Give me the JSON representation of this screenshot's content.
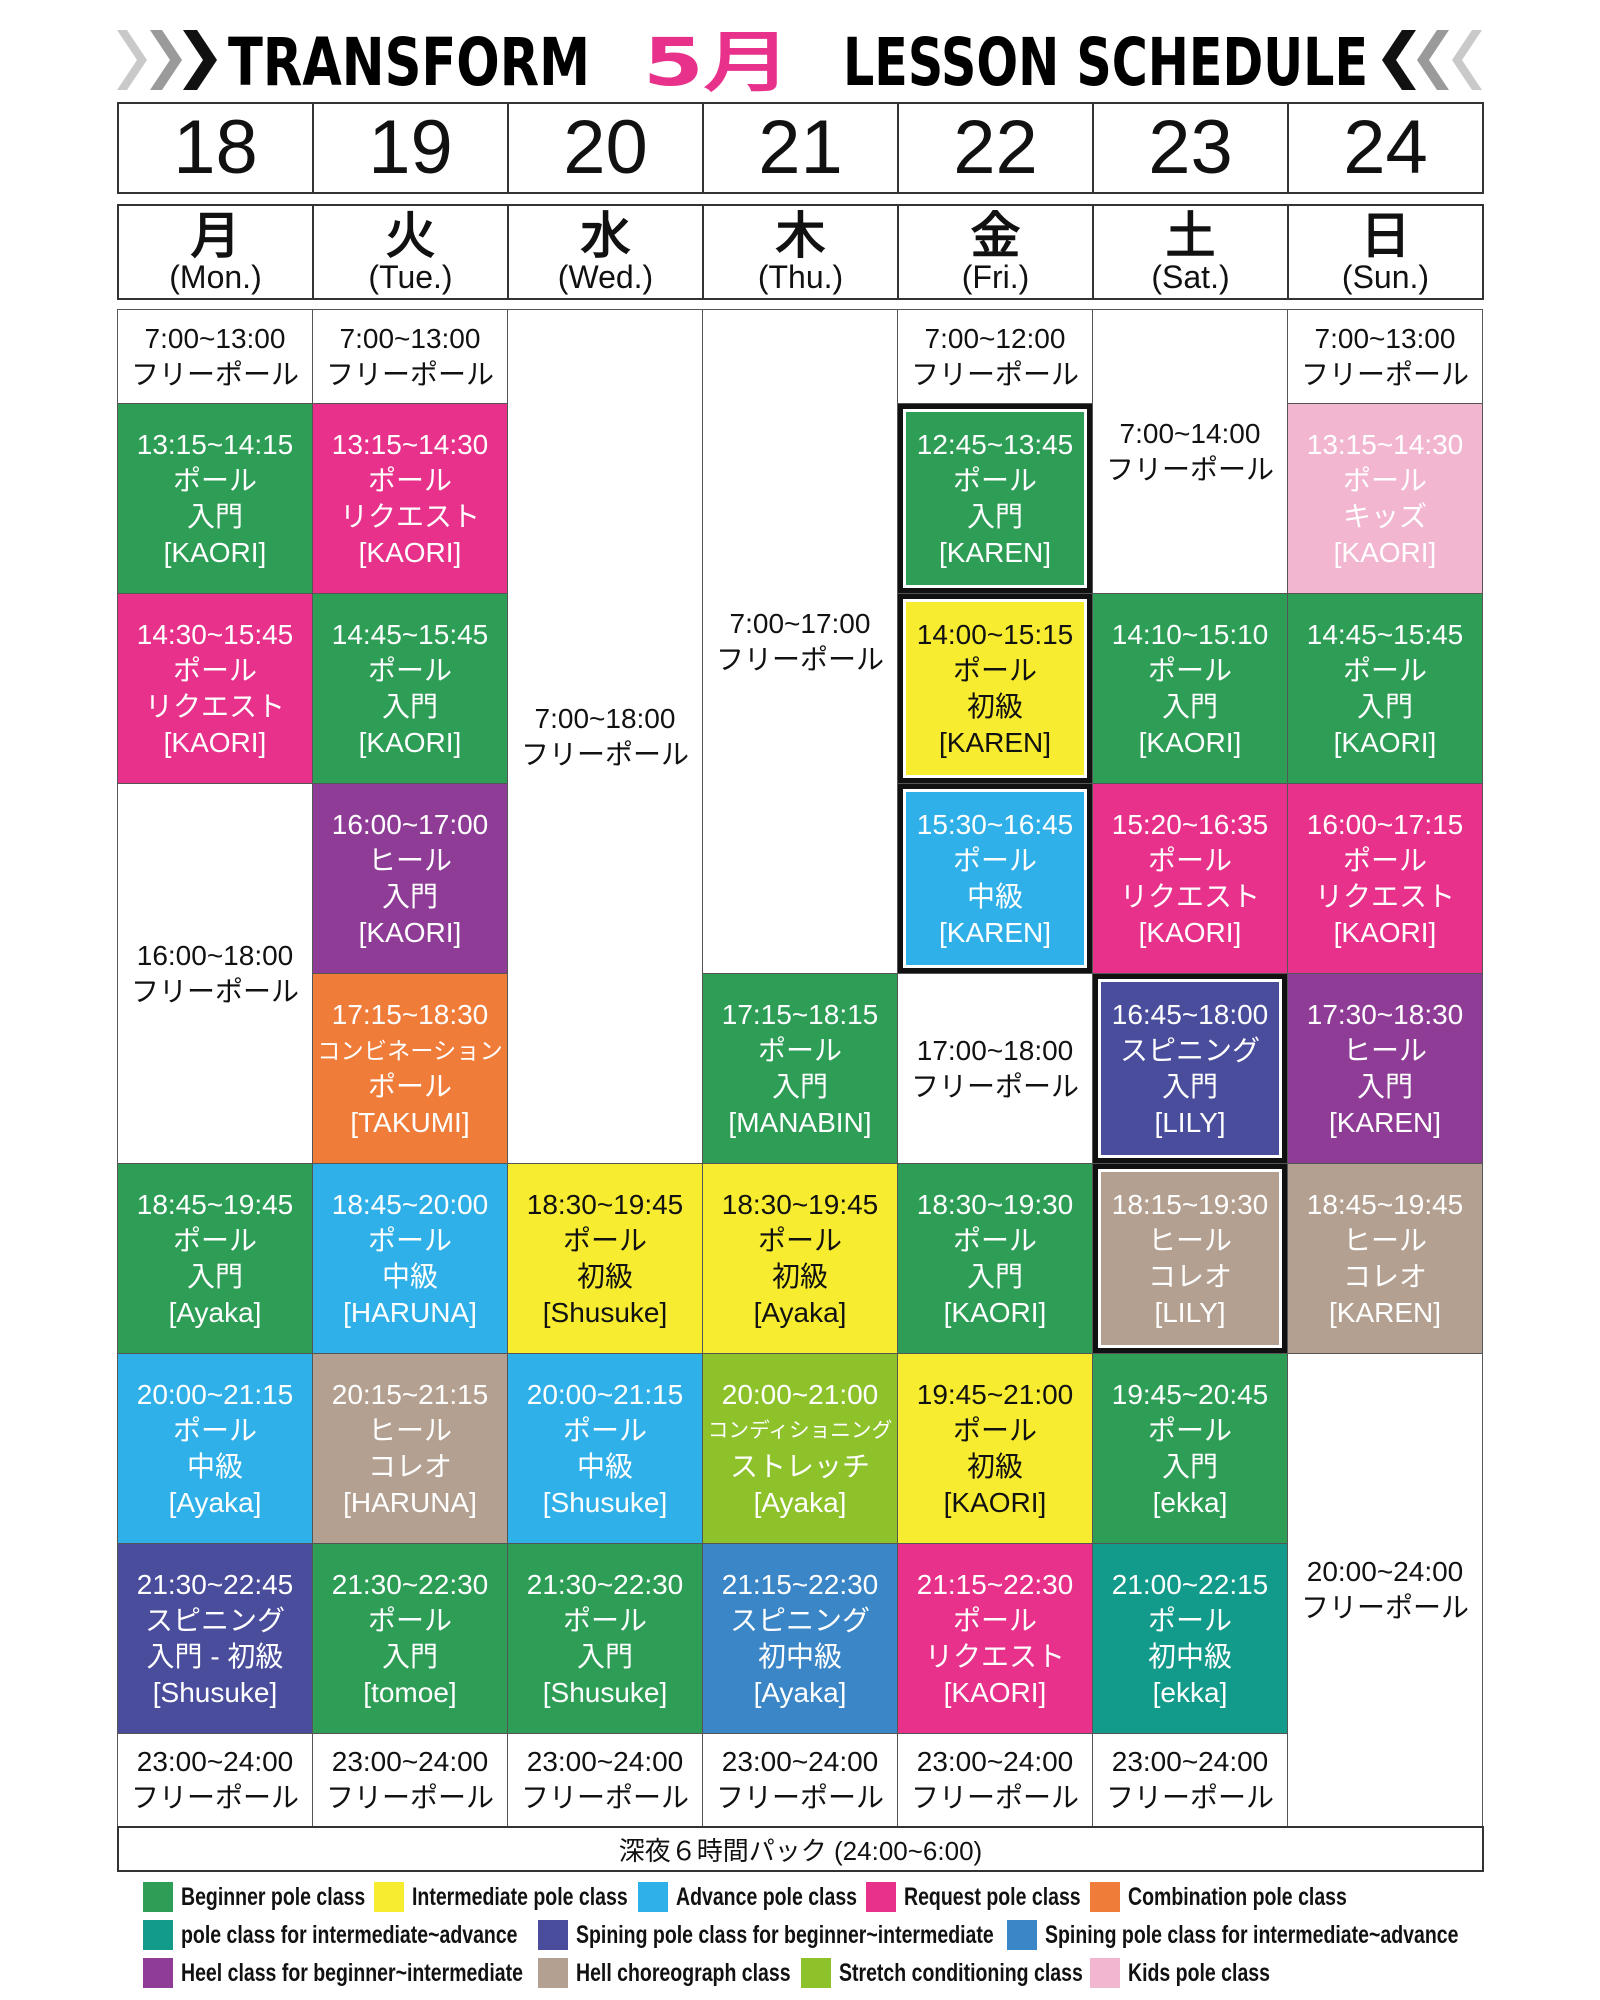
{
  "header": {
    "brand": "TRANSFORM",
    "month": "5月",
    "title": "LESSON SCHEDULE"
  },
  "days": [
    {
      "date": "18",
      "dow": "月",
      "dow_en": "(Mon.)",
      "cells": [
        {
          "lines": [
            "7:00~13:00",
            "フリーポール"
          ]
        },
        {
          "color": "#2e9e57",
          "lines": [
            "13:15~14:15",
            "ポール",
            "入門",
            "[KAORI]"
          ]
        },
        {
          "color": "#e8318a",
          "lines": [
            "14:30~15:45",
            "ポール",
            "リクエスト",
            "[KAORI]"
          ]
        },
        {
          "lines": [
            "16:00~18:00",
            "フリーポール"
          ]
        },
        {
          "color": "#2e9e57",
          "lines": [
            "18:45~19:45",
            "ポール",
            "入門",
            "[Ayaka]"
          ]
        },
        {
          "color": "#2fb0e8",
          "lines": [
            "20:00~21:15",
            "ポール",
            "中級",
            "[Ayaka]"
          ]
        },
        {
          "color": "#4a4c9c",
          "lines": [
            "21:30~22:45",
            "スピニング",
            "入門 - 初級",
            "[Shusuke]"
          ]
        },
        {
          "lines": [
            "23:00~24:00",
            "フリーポール"
          ]
        }
      ]
    },
    {
      "date": "19",
      "dow": "火",
      "dow_en": "(Tue.)",
      "cells": [
        {
          "lines": [
            "7:00~13:00",
            "フリーポール"
          ]
        },
        {
          "color": "#e8318a",
          "lines": [
            "13:15~14:30",
            "ポール",
            "リクエスト",
            "[KAORI]"
          ]
        },
        {
          "color": "#2e9e57",
          "lines": [
            "14:45~15:45",
            "ポール",
            "入門",
            "[KAORI]"
          ]
        },
        {
          "color": "#8f3c97",
          "lines": [
            "16:00~17:00",
            "ヒール",
            "入門",
            "[KAORI]"
          ]
        },
        {
          "color": "#f07c3a",
          "lines": [
            "17:15~18:30",
            "コンビネーション",
            "ポール",
            "[TAKUMI]"
          ]
        },
        {
          "color": "#2fb0e8",
          "lines": [
            "18:45~20:00",
            "ポール",
            "中級",
            "[HARUNA]"
          ]
        },
        {
          "color": "#b3a091",
          "lines": [
            "20:15~21:15",
            "ヒール",
            "コレオ",
            "[HARUNA]"
          ]
        },
        {
          "color": "#2e9e57",
          "lines": [
            "21:30~22:30",
            "ポール",
            "入門",
            "[tomoe]"
          ]
        },
        {
          "lines": [
            "23:00~24:00",
            "フリーポール"
          ]
        }
      ]
    },
    {
      "date": "20",
      "dow": "水",
      "dow_en": "(Wed.)",
      "cells": [
        {
          "lines": [
            "7:00~18:00",
            "フリーポール"
          ]
        },
        {
          "color": "#f7ec2f",
          "lines": [
            "18:30~19:45",
            "ポール",
            "初級",
            "[Shusuke]"
          ]
        },
        {
          "color": "#2fb0e8",
          "lines": [
            "20:00~21:15",
            "ポール",
            "中級",
            "[Shusuke]"
          ]
        },
        {
          "color": "#2e9e57",
          "lines": [
            "21:30~22:30",
            "ポール",
            "入門",
            "[Shusuke]"
          ]
        },
        {
          "lines": [
            "23:00~24:00",
            "フリーポール"
          ]
        }
      ]
    },
    {
      "date": "21",
      "dow": "木",
      "dow_en": "(Thu.)",
      "cells": [
        {
          "lines": [
            "7:00~17:00",
            "フリーポール"
          ]
        },
        {
          "color": "#2e9e57",
          "lines": [
            "17:15~18:15",
            "ポール",
            "入門",
            "[MANABIN]"
          ]
        },
        {
          "color": "#f7ec2f",
          "lines": [
            "18:30~19:45",
            "ポール",
            "初級",
            "[Ayaka]"
          ]
        },
        {
          "color": "#8dc22a",
          "lines": [
            "20:00~21:00",
            "コンディショニング",
            "ストレッチ",
            "[Ayaka]"
          ]
        },
        {
          "color": "#3b86c6",
          "lines": [
            "21:15~22:30",
            "スピニング",
            "初中級",
            "[Ayaka]"
          ]
        },
        {
          "lines": [
            "23:00~24:00",
            "フリーポール"
          ]
        }
      ]
    },
    {
      "date": "22",
      "dow": "金",
      "dow_en": "(Fri.)",
      "cells": [
        {
          "lines": [
            "7:00~12:00",
            "フリーポール"
          ]
        },
        {
          "color": "#2e9e57",
          "lines": [
            "12:45~13:45",
            "ポール",
            "入門",
            "[KAREN]"
          ]
        },
        {
          "color": "#f7ec2f",
          "lines": [
            "14:00~15:15",
            "ポール",
            "初級",
            "[KAREN]"
          ]
        },
        {
          "color": "#2fb0e8",
          "lines": [
            "15:30~16:45",
            "ポール",
            "中級",
            "[KAREN]"
          ]
        },
        {
          "lines": [
            "17:00~18:00",
            "フリーポール"
          ]
        },
        {
          "color": "#2e9e57",
          "lines": [
            "18:30~19:30",
            "ポール",
            "入門",
            "[KAORI]"
          ]
        },
        {
          "color": "#f7ec2f",
          "lines": [
            "19:45~21:00",
            "ポール",
            "初級",
            "[KAORI]"
          ]
        },
        {
          "color": "#e8318a",
          "lines": [
            "21:15~22:30",
            "ポール",
            "リクエスト",
            "[KAORI]"
          ]
        },
        {
          "lines": [
            "23:00~24:00",
            "フリーポール"
          ]
        }
      ]
    },
    {
      "date": "23",
      "dow": "土",
      "dow_en": "(Sat.)",
      "cells": [
        {
          "lines": [
            "7:00~14:00",
            "フリーポール"
          ]
        },
        {
          "color": "#2e9e57",
          "lines": [
            "14:10~15:10",
            "ポール",
            "入門",
            "[KAORI]"
          ]
        },
        {
          "color": "#e8318a",
          "lines": [
            "15:20~16:35",
            "ポール",
            "リクエスト",
            "[KAORI]"
          ]
        },
        {
          "color": "#4a4c9c",
          "lines": [
            "16:45~18:00",
            "スピニング",
            "入門",
            "[LILY]"
          ]
        },
        {
          "color": "#b3a091",
          "lines": [
            "18:15~19:30",
            "ヒール",
            "コレオ",
            "[LILY]"
          ]
        },
        {
          "color": "#2e9e57",
          "lines": [
            "19:45~20:45",
            "ポール",
            "入門",
            "[ekka]"
          ]
        },
        {
          "color": "#129a8a",
          "lines": [
            "21:00~22:15",
            "ポール",
            "初中級",
            "[ekka]"
          ]
        },
        {
          "lines": [
            "23:00~24:00",
            "フリーポール"
          ]
        }
      ]
    },
    {
      "date": "24",
      "dow": "日",
      "dow_en": "(Sun.)",
      "cells": [
        {
          "lines": [
            "7:00~13:00",
            "フリーポール"
          ]
        },
        {
          "color": "#f2b6d0",
          "lines": [
            "13:15~14:30",
            "ポール",
            "キッズ",
            "[KAORI]"
          ]
        },
        {
          "color": "#2e9e57",
          "lines": [
            "14:45~15:45",
            "ポール",
            "入門",
            "[KAORI]"
          ]
        },
        {
          "color": "#e8318a",
          "lines": [
            "16:00~17:15",
            "ポール",
            "リクエスト",
            "[KAORI]"
          ]
        },
        {
          "color": "#8f3c97",
          "lines": [
            "17:30~18:30",
            "ヒール",
            "入門",
            "[KAREN]"
          ]
        },
        {
          "color": "#b3a091",
          "lines": [
            "18:45~19:45",
            "ヒール",
            "コレオ",
            "[KAREN]"
          ]
        },
        {
          "lines": [
            "20:00~24:00",
            "フリーポール"
          ]
        }
      ]
    }
  ],
  "late_night": "深夜６時間パック (24:00~6:00)",
  "legend": [
    {
      "color": "#2e9e57",
      "label": "Beginner pole class"
    },
    {
      "color": "#f7ec2f",
      "label": "Intermediate pole class"
    },
    {
      "color": "#2fb0e8",
      "label": "Advance pole class"
    },
    {
      "color": "#e8318a",
      "label": "Request pole class"
    },
    {
      "color": "#f07c3a",
      "label": "Combination pole class"
    },
    {
      "color": "#129a8a",
      "label": "pole class for intermediate~advance"
    },
    {
      "color": "#4a4c9c",
      "label": "Spining pole class for beginner~intermediate"
    },
    {
      "color": "#3b86c6",
      "label": "Spining pole class for intermediate~advance"
    },
    {
      "color": "#8f3c97",
      "label": "Heel class for beginner~intermediate"
    },
    {
      "color": "#b3a091",
      "label": "Hell choreograph class"
    },
    {
      "color": "#8dc22a",
      "label": "Stretch conditioning class"
    },
    {
      "color": "#f2b6d0",
      "label": "Kids pole class"
    }
  ]
}
